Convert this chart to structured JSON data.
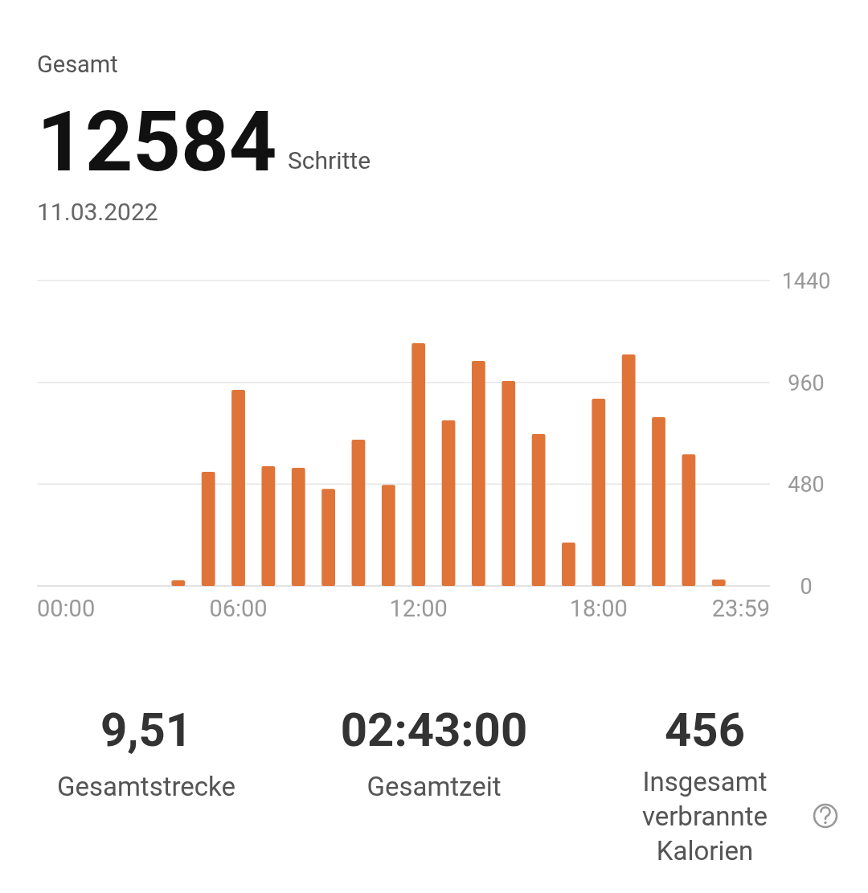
{
  "chart_data": {
    "type": "bar",
    "categories": [
      "00:00",
      null,
      null,
      null,
      null,
      null,
      "06:00",
      null,
      null,
      null,
      null,
      null,
      "12:00",
      null,
      null,
      null,
      null,
      null,
      "18:00",
      null,
      null,
      null,
      null,
      "23:59"
    ],
    "values": [
      0,
      0,
      0,
      0,
      27,
      538,
      925,
      565,
      557,
      458,
      690,
      477,
      1144,
      781,
      1061,
      966,
      716,
      205,
      883,
      1091,
      796,
      621,
      30,
      0
    ],
    "color": "#e07438",
    "ylim": [
      0,
      1440
    ],
    "yticks": [
      0,
      480,
      960,
      1440
    ],
    "grid": "y",
    "annotations": [
      "Gesamt",
      "12584",
      "Schritte",
      "11.03.2022",
      "9,51",
      "Gesamtstrecke",
      "02:43:00",
      "Gesamtzeit",
      "456",
      "Insgesamt verbrannte Kalorien"
    ]
  }
}
